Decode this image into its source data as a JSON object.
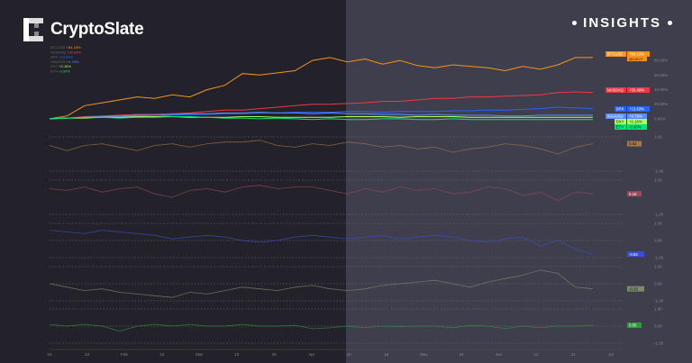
{
  "brand": {
    "name": "CryptoSlate",
    "section": "INSIGHTS"
  },
  "colors": {
    "left_bg": "#23222b",
    "right_bg": "#3f3e4c",
    "btc": "#f7931a",
    "nasdaq": "#f23645",
    "spx": "#2962ff",
    "xau": "#5b8cff",
    "dxy": "#b2ff59",
    "eth": "#00e676",
    "corr1": "#a07a4a",
    "corr2": "#9a4a5a",
    "corr3": "#3b4fd0",
    "corr4": "#7a8a6a",
    "corr5": "#2e9a3a"
  },
  "chart_data": [
    {
      "type": "line",
      "ylabel": "",
      "ylim": [
        -10,
        95
      ],
      "yticks": [
        "80.00%",
        "60.00%",
        "40.00%",
        "20.00%",
        "0.00%"
      ],
      "xticks": [
        "23",
        "13",
        "Feb",
        "13",
        "Mar",
        "13",
        "20",
        "Apr",
        "10",
        "18",
        "May",
        "15",
        "Jun",
        "12",
        "21",
        "Jul"
      ],
      "series": [
        {
          "name": "BTCUSD",
          "label": "+84.18%",
          "time": "08:09:27",
          "color": "#f7931a",
          "values": [
            0,
            4,
            18,
            22,
            26,
            30,
            28,
            33,
            30,
            40,
            46,
            62,
            60,
            63,
            66,
            80,
            84,
            78,
            82,
            75,
            80,
            73,
            70,
            74,
            72,
            70,
            66,
            72,
            68,
            74,
            84,
            84
          ]
        },
        {
          "name": "NASDAQ",
          "label": "+36.49%",
          "color": "#f23645",
          "values": [
            0,
            1,
            3,
            4,
            5,
            6,
            6,
            7,
            8,
            10,
            12,
            12,
            14,
            16,
            18,
            20,
            20,
            21,
            22,
            24,
            24,
            26,
            28,
            28,
            30,
            30,
            31,
            32,
            33,
            36,
            37,
            36
          ]
        },
        {
          "name": "SPX",
          "label": "+13.63%",
          "color": "#2962ff",
          "values": [
            0,
            1,
            2,
            3,
            3,
            4,
            3,
            5,
            6,
            6,
            7,
            7,
            8,
            8,
            9,
            9,
            9,
            10,
            10,
            9,
            10,
            10,
            10,
            11,
            11,
            12,
            12,
            13,
            14,
            16,
            15,
            14
          ]
        },
        {
          "name": "XAUUSD",
          "label": "+4.79%",
          "color": "#5b8cff",
          "values": [
            0,
            1,
            2,
            3,
            4,
            5,
            5,
            6,
            7,
            7,
            8,
            8,
            9,
            8,
            8,
            7,
            8,
            7,
            7,
            6,
            6,
            5,
            6,
            5,
            5,
            5,
            4,
            4,
            5,
            5,
            5,
            5
          ]
        },
        {
          "name": "DXY",
          "label": "+2.16%",
          "color": "#b2ff59",
          "values": [
            0,
            1,
            1,
            2,
            2,
            3,
            3,
            3,
            2,
            2,
            2,
            3,
            3,
            2,
            2,
            2,
            2,
            3,
            3,
            3,
            2,
            3,
            3,
            3,
            2,
            2,
            2,
            2,
            2,
            2,
            2,
            2
          ]
        },
        {
          "name": "ETH",
          "label": "-0.90%",
          "color": "#00e676",
          "values": [
            0,
            1,
            2,
            2,
            1,
            2,
            2,
            3,
            3,
            2,
            1,
            1,
            0,
            1,
            0,
            -1,
            0,
            -1,
            -1,
            0,
            0,
            -1,
            -1,
            0,
            -1,
            -1,
            -1,
            -1,
            -1,
            -1,
            -1,
            -1
          ]
        }
      ]
    },
    {
      "type": "line",
      "ylim": [
        -1,
        1
      ],
      "yticks": [
        "1.00",
        "-1.00"
      ],
      "series": [
        {
          "label": "0.62",
          "values": [
            0.5,
            0.2,
            0.5,
            0.6,
            0.4,
            0.2,
            0.5,
            0.6,
            0.4,
            0.6,
            0.7,
            0.7,
            0.8,
            0.5,
            0.4,
            0.6,
            0.5,
            0.7,
            0.6,
            0.4,
            0.5,
            0.3,
            0.4,
            0.1,
            0.3,
            0.4,
            0.6,
            0.5,
            0.3,
            0.0,
            0.4,
            0.6
          ]
        }
      ]
    },
    {
      "type": "line",
      "ylim": [
        -1,
        1
      ],
      "yticks": [
        "1.00",
        "-1.00"
      ],
      "series": [
        {
          "label": "0.18",
          "values": [
            0.5,
            0.4,
            0.6,
            0.3,
            0.5,
            0.6,
            0.2,
            0.0,
            0.4,
            0.5,
            0.3,
            0.6,
            0.7,
            0.5,
            0.6,
            0.6,
            0.4,
            0.2,
            0.5,
            0.3,
            0.6,
            0.4,
            0.5,
            0.2,
            0.3,
            0.6,
            0.5,
            0.1,
            0.3,
            -0.2,
            0.3,
            0.2
          ]
        }
      ]
    },
    {
      "type": "line",
      "ylim": [
        -1,
        1
      ],
      "yticks": [
        "1.00",
        "0.00",
        "-1.00"
      ],
      "series": [
        {
          "label": "-0.84",
          "values": [
            0.6,
            0.5,
            0.4,
            0.6,
            0.5,
            0.4,
            0.3,
            0.1,
            0.2,
            0.3,
            0.2,
            0.0,
            -0.1,
            0.0,
            0.2,
            0.3,
            0.2,
            0.1,
            0.2,
            0.3,
            0.1,
            0.2,
            0.3,
            0.2,
            0.0,
            -0.1,
            0.1,
            0.2,
            -0.3,
            0.0,
            -0.5,
            -0.8
          ]
        }
      ]
    },
    {
      "type": "line",
      "ylim": [
        -1,
        1
      ],
      "yticks": [
        "1.00",
        "0.00",
        "-1.00"
      ],
      "series": [
        {
          "label": "-0.33",
          "values": [
            0.0,
            -0.2,
            -0.4,
            -0.3,
            -0.5,
            -0.6,
            -0.7,
            -0.8,
            -0.5,
            -0.6,
            -0.4,
            -0.2,
            -0.3,
            -0.4,
            -0.2,
            -0.1,
            -0.3,
            -0.4,
            -0.3,
            -0.1,
            0.0,
            0.1,
            0.2,
            0.0,
            -0.2,
            0.1,
            0.3,
            0.5,
            0.8,
            0.6,
            -0.2,
            -0.3
          ]
        }
      ]
    },
    {
      "type": "line",
      "ylim": [
        -1,
        1
      ],
      "yticks": [
        "1.00",
        "0.00",
        "-1.00"
      ],
      "series": [
        {
          "label": "0.05",
          "values": [
            0.1,
            0.0,
            0.1,
            0.0,
            -0.3,
            0.0,
            0.1,
            0.0,
            0.1,
            0.0,
            0.0,
            0.1,
            0.0,
            0.0,
            0.05,
            -0.15,
            -0.1,
            0.0,
            -0.1,
            0.0,
            -0.05,
            0.0,
            0.0,
            -0.1,
            0.05,
            0.0,
            -0.15,
            0.0,
            -0.1,
            0.0,
            0.0,
            0.05
          ]
        }
      ]
    }
  ]
}
